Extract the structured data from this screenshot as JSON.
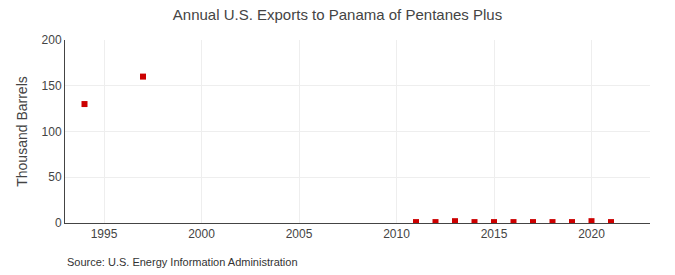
{
  "chart_data": {
    "type": "scatter",
    "title": "Annual U.S. Exports to Panama of Pentanes Plus",
    "y_label": "Thousand Barrels",
    "annotations": [
      "Source: U.S. Energy Information Administration"
    ],
    "x": [
      1994,
      1997,
      2011,
      2012,
      2013,
      2014,
      2015,
      2016,
      2017,
      2018,
      2019,
      2020,
      2021
    ],
    "values": [
      130,
      160,
      1,
      1,
      2,
      1,
      1,
      1,
      1,
      1,
      1,
      2,
      1
    ],
    "color": "#cc0000",
    "marker": "square",
    "xlim": [
      1993,
      2023
    ],
    "xticks": [
      1995,
      2000,
      2005,
      2010,
      2015,
      2020
    ],
    "ylim": [
      0,
      200
    ],
    "yticks": [
      0,
      50,
      100,
      150,
      200
    ],
    "grid": true
  }
}
